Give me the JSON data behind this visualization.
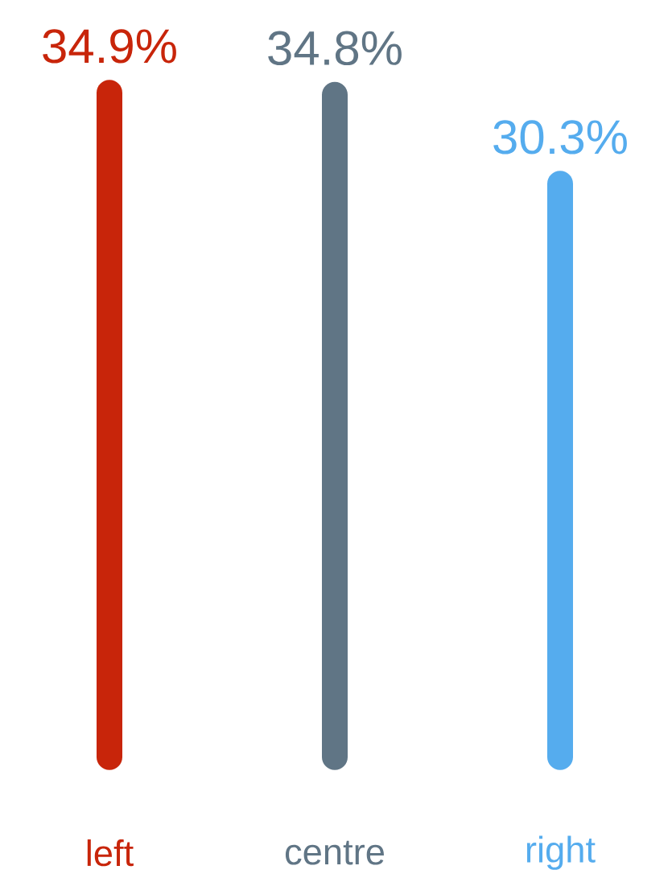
{
  "chart_data": {
    "type": "bar",
    "categories": [
      "left",
      "centre",
      "right"
    ],
    "values": [
      34.9,
      34.8,
      30.3
    ],
    "value_labels": [
      "34.9%",
      "34.8%",
      "30.3%"
    ],
    "colors": [
      "#c8250a",
      "#607585",
      "#55acee"
    ]
  }
}
